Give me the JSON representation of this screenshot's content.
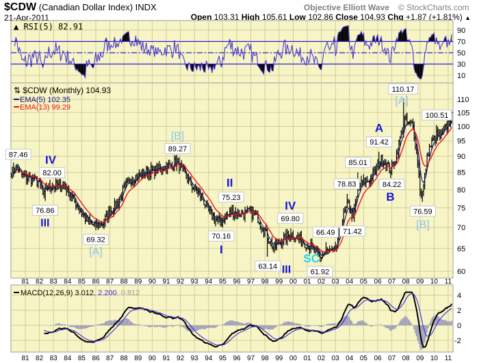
{
  "header": {
    "symbol": "$CDW",
    "name": "(Canadian Dollar Index)",
    "exchange": "INDX",
    "date": "21-Apr-2011",
    "title": "Objective Elliott Wave",
    "copyright": "© StockCharts.com",
    "open_label": "Open",
    "open": "103.31",
    "high_label": "High",
    "high": "105.61",
    "low_label": "Low",
    "low": "102.86",
    "close_label": "Close",
    "close": "104.93",
    "chg_label": "Chg",
    "chg": "+1.87 (+1.81%)",
    "chg_icon": "triangle-up-icon"
  },
  "chart_data": [
    {
      "panel": "rsi",
      "type": "line",
      "legend": "RSI(5) 82.91",
      "yticks": [
        10,
        30,
        50,
        70,
        90
      ],
      "ylim": [
        0,
        100
      ],
      "reference_lines": [
        30,
        50,
        70
      ],
      "color": "#4a3ad0",
      "fill_color": "#000000"
    },
    {
      "panel": "price",
      "type": "ohlc",
      "legend": "$CDW (Monthly) 104.93",
      "ema_legends": [
        {
          "label": "EMA(5) 102.35",
          "color": "#10107a",
          "period": 5
        },
        {
          "label": "EMA(13) 99.29",
          "color": "#ee1111",
          "period": 13
        }
      ],
      "yscale": "log",
      "yticks": [
        60,
        65,
        70,
        75,
        80,
        85,
        90,
        95,
        100,
        105,
        110
      ],
      "ylim": [
        58.5,
        118
      ],
      "xlim": [
        1980.0,
        2011.4
      ],
      "xticks": [
        "81",
        "82",
        "83",
        "84",
        "85",
        "86",
        "87",
        "88",
        "89",
        "90",
        "91",
        "92",
        "93",
        "94",
        "95",
        "96",
        "97",
        "98",
        "99",
        "00",
        "01",
        "02",
        "03",
        "04",
        "05",
        "06",
        "07",
        "08",
        "09",
        "10",
        "11"
      ],
      "close_keypoints": [
        [
          1980.0,
          85
        ],
        [
          1980.4,
          86.5
        ],
        [
          1980.8,
          84
        ],
        [
          1981.5,
          83
        ],
        [
          1982.0,
          82
        ],
        [
          1982.3,
          78
        ],
        [
          1982.5,
          80.5
        ],
        [
          1982.8,
          81
        ],
        [
          1983.8,
          81
        ],
        [
          1984.3,
          78
        ],
        [
          1984.8,
          75
        ],
        [
          1985.3,
          72
        ],
        [
          1985.8,
          70.5
        ],
        [
          1986.5,
          71
        ],
        [
          1987.0,
          74
        ],
        [
          1987.5,
          76
        ],
        [
          1988.0,
          80
        ],
        [
          1988.5,
          83
        ],
        [
          1989.5,
          85
        ],
        [
          1990.5,
          86
        ],
        [
          1991.3,
          87
        ],
        [
          1991.8,
          88.5
        ],
        [
          1992.0,
          86.5
        ],
        [
          1992.5,
          83
        ],
        [
          1993.0,
          80
        ],
        [
          1993.5,
          78
        ],
        [
          1994.0,
          74
        ],
        [
          1994.5,
          72
        ],
        [
          1994.9,
          71.5
        ],
        [
          1995.3,
          73
        ],
        [
          1995.7,
          74
        ],
        [
          1996.5,
          73.5
        ],
        [
          1997.0,
          74
        ],
        [
          1997.5,
          72.5
        ],
        [
          1998.0,
          69
        ],
        [
          1998.6,
          65
        ],
        [
          1999.0,
          66.5
        ],
        [
          1999.5,
          67.5
        ],
        [
          1999.9,
          68.5
        ],
        [
          2000.5,
          67
        ],
        [
          2001.0,
          66
        ],
        [
          2001.5,
          64.5
        ],
        [
          2001.9,
          62.8
        ],
        [
          2002.3,
          64.5
        ],
        [
          2002.8,
          64
        ],
        [
          2003.1,
          65
        ],
        [
          2003.5,
          72
        ],
        [
          2003.9,
          76
        ],
        [
          2004.3,
          73
        ],
        [
          2004.6,
          80
        ],
        [
          2004.9,
          82
        ],
        [
          2005.5,
          83
        ],
        [
          2005.9,
          86
        ],
        [
          2006.2,
          89
        ],
        [
          2006.6,
          88
        ],
        [
          2006.9,
          85.5
        ],
        [
          2007.3,
          90
        ],
        [
          2007.6,
          96
        ],
        [
          2007.9,
          102
        ],
        [
          2008.2,
          101
        ],
        [
          2008.5,
          100
        ],
        [
          2008.8,
          90
        ],
        [
          2009.0,
          80
        ],
        [
          2009.2,
          79
        ],
        [
          2009.4,
          86
        ],
        [
          2009.6,
          92
        ],
        [
          2009.9,
          95
        ],
        [
          2010.2,
          97
        ],
        [
          2010.5,
          96
        ],
        [
          2010.8,
          99
        ],
        [
          2011.0,
          101
        ],
        [
          2011.3,
          104.93
        ]
      ],
      "annotations": [
        {
          "text": "87.46",
          "x": 1980.5,
          "value": 87.46,
          "pos": "above"
        },
        {
          "text": "82.00",
          "x": 1982.9,
          "value": 82.0,
          "pos": "above"
        },
        {
          "text": "76.86",
          "x": 1982.4,
          "value": 76.86,
          "pos": "below"
        },
        {
          "text": "69.32",
          "x": 1986.0,
          "value": 69.32,
          "pos": "below"
        },
        {
          "text": "89.27",
          "x": 1991.8,
          "value": 89.27,
          "pos": "above"
        },
        {
          "text": "70.16",
          "x": 1994.9,
          "value": 70.16,
          "pos": "below"
        },
        {
          "text": "75.23",
          "x": 1995.6,
          "value": 75.23,
          "pos": "above"
        },
        {
          "text": "63.14",
          "x": 1998.2,
          "value": 63.14,
          "pos": "below"
        },
        {
          "text": "69.80",
          "x": 1999.8,
          "value": 69.8,
          "pos": "above"
        },
        {
          "text": "61.92",
          "x": 2001.9,
          "value": 61.92,
          "pos": "below"
        },
        {
          "text": "66.49",
          "x": 2002.3,
          "value": 66.49,
          "pos": "above"
        },
        {
          "text": "78.83",
          "x": 2003.8,
          "value": 78.83,
          "pos": "above"
        },
        {
          "text": "71.42",
          "x": 2004.2,
          "value": 71.42,
          "pos": "below"
        },
        {
          "text": "85.01",
          "x": 2004.6,
          "value": 85.01,
          "pos": "above"
        },
        {
          "text": "91.42",
          "x": 2006.1,
          "value": 91.42,
          "pos": "above"
        },
        {
          "text": "84.22",
          "x": 2007.0,
          "value": 84.22,
          "pos": "below"
        },
        {
          "text": "110.17",
          "x": 2007.8,
          "value": 110.17,
          "pos": "above"
        },
        {
          "text": "76.59",
          "x": 2009.2,
          "value": 76.59,
          "pos": "below"
        },
        {
          "text": "100.51",
          "x": 2010.2,
          "value": 100.51,
          "pos": "above"
        }
      ],
      "wave_labels": [
        {
          "text": "IV",
          "x": 1982.8,
          "value": 87.2,
          "color": "#1515dd"
        },
        {
          "text": "III",
          "x": 1982.4,
          "value": 72.0,
          "color": "#1515dd"
        },
        {
          "text": "[A]",
          "x": 1986.0,
          "value": 64.6,
          "color": "#8ec2ee"
        },
        {
          "text": "[B]",
          "x": 1991.8,
          "value": 95.1,
          "color": "#8ec2ee"
        },
        {
          "text": "II",
          "x": 1995.5,
          "value": 79.9,
          "color": "#1515dd"
        },
        {
          "text": "I",
          "x": 1994.9,
          "value": 65.9,
          "color": "#1515dd"
        },
        {
          "text": "III",
          "x": 1998.5,
          "value": 58.9,
          "color": "#1515dd"
        },
        {
          "text": "IV",
          "x": 1999.8,
          "value": 74.2,
          "color": "#1515dd"
        },
        {
          "text": "SC",
          "x": 2001.3,
          "value": 60.3,
          "color": "#22d3f0"
        },
        {
          "text": "A",
          "x": 2006.1,
          "value": 96.9,
          "color": "#1515dd"
        },
        {
          "text": "B",
          "x": 2006.9,
          "value": 78.8,
          "color": "#1515dd"
        },
        {
          "text": "[A]",
          "x": 2007.7,
          "value": 116.5,
          "color": "#8ec2ee"
        },
        {
          "text": "[B]",
          "x": 2009.2,
          "value": 71.0,
          "color": "#8ec2ee"
        }
      ]
    },
    {
      "panel": "macd",
      "type": "line",
      "legend_main": "MACD(12,26,9) 3.012",
      "legend_signal": ", 2.200",
      "legend_hist": ", 0.812",
      "yticks": [
        -2,
        0,
        2,
        4
      ],
      "ylim": [
        -3.5,
        4.5
      ],
      "macd_color": "#000000",
      "signal_color": "#3a2ae0",
      "hist_color": "#9a9ab8"
    }
  ]
}
